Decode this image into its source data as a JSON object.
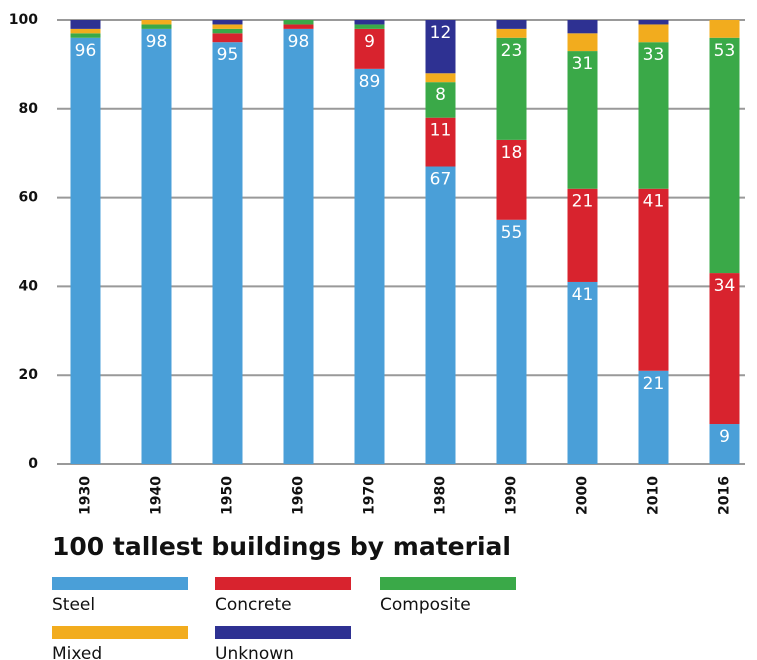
{
  "chart_data": {
    "type": "stacked_bar",
    "title": "100 tallest buildings by material",
    "categories": [
      "1930",
      "1940",
      "1950",
      "1960",
      "1970",
      "1980",
      "1990",
      "2000",
      "2010",
      "2016"
    ],
    "series": [
      {
        "name": "Steel",
        "color": "#4a9fd8",
        "values": [
          96,
          98,
          95,
          98,
          89,
          67,
          55,
          41,
          21,
          9
        ]
      },
      {
        "name": "Concrete",
        "color": "#d8232e",
        "values": [
          0,
          0,
          2,
          1,
          9,
          11,
          18,
          21,
          41,
          34
        ]
      },
      {
        "name": "Composite",
        "color": "#3aa948",
        "values": [
          1,
          1,
          1,
          1,
          1,
          8,
          23,
          31,
          33,
          53
        ]
      },
      {
        "name": "Mixed",
        "color": "#f2ac1e",
        "values": [
          1,
          1,
          1,
          0,
          0,
          2,
          2,
          4,
          4,
          4
        ]
      },
      {
        "name": "Unknown",
        "color": "#2e3192",
        "values": [
          2,
          0,
          1,
          0,
          1,
          12,
          2,
          3,
          1,
          0
        ]
      }
    ],
    "ylim": [
      0,
      100
    ],
    "yticks": [
      0,
      20,
      40,
      60,
      80,
      100
    ],
    "grid": true
  }
}
